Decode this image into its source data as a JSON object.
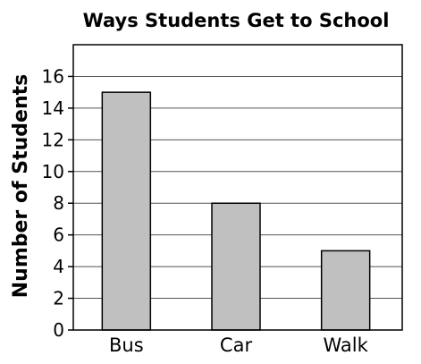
{
  "chart_data": {
    "type": "bar",
    "title": "Ways Students Get to School",
    "xlabel": "",
    "ylabel": "Number of Students",
    "categories": [
      "Bus",
      "Car",
      "Walk"
    ],
    "values": [
      15,
      8,
      5
    ],
    "ylim": [
      0,
      18
    ],
    "yticks": [
      0,
      2,
      4,
      6,
      8,
      10,
      12,
      14,
      16
    ],
    "grid": true,
    "legend": "none",
    "colors": {
      "bar_fill": "#c0c0c0",
      "bar_stroke": "#000000",
      "grid": "#555555"
    }
  }
}
